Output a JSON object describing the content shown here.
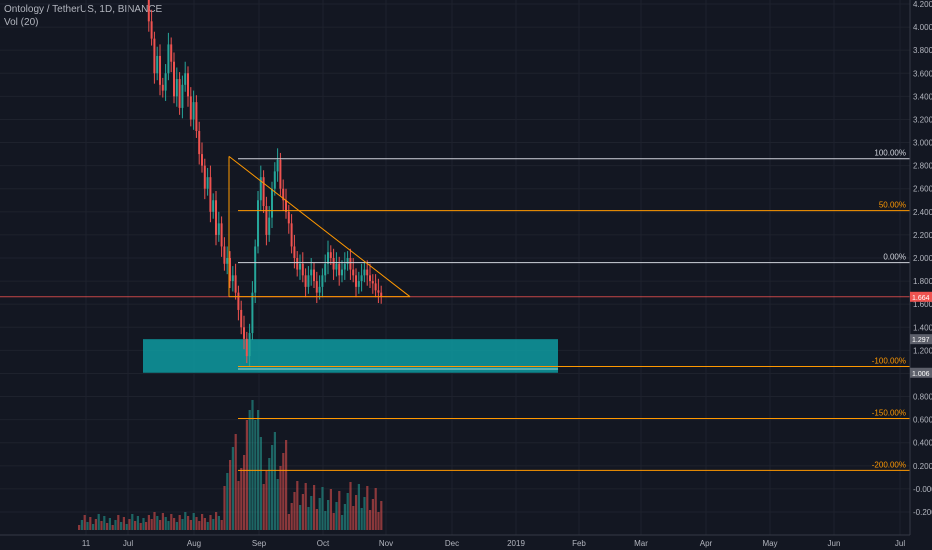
{
  "header": {
    "symbol_line": "Ontology / TetherUS, 1D, BINANCE",
    "volume_label": "Vol (20)"
  },
  "colors": {
    "background": "#131722",
    "up": "#26a69a",
    "down": "#ef5350",
    "grid": "#1e222d",
    "fib_white": "#d1d4dc",
    "fib_orange": "#ff9800",
    "current_price_line": "#ef5350",
    "zone": "#0e9aa0"
  },
  "chart_data": {
    "type": "candlestick",
    "price_axis": {
      "ticks": [
        "4.200",
        "4.000",
        "3.800",
        "3.600",
        "3.400",
        "3.200",
        "3.000",
        "2.800",
        "2.600",
        "2.400",
        "2.200",
        "2.000",
        "1.800",
        "1.600",
        "1.400",
        "1.200",
        "1.000",
        "0.800",
        "0.600",
        "0.400",
        "0.200",
        "-0.000",
        "-0.200"
      ],
      "range": [
        -0.2,
        4.2
      ]
    },
    "time_axis": {
      "labels": [
        "11",
        "Jul",
        "Aug",
        "Sep",
        "Oct",
        "Nov",
        "Dec",
        "2019",
        "Feb",
        "Mar",
        "Apr",
        "May",
        "Jun",
        "Jul"
      ]
    },
    "badges": [
      {
        "text": "1.664",
        "price": 1.664,
        "color": "#ef5350"
      },
      {
        "text": "1.297",
        "price": 1.297,
        "color": "#5d606b"
      },
      {
        "text": "1.006",
        "price": 1.006,
        "color": "#5d606b"
      }
    ],
    "fib_levels": [
      {
        "label": "100.00%",
        "price": 2.86,
        "color": "#d1d4dc"
      },
      {
        "label": "50.00%",
        "price": 2.41,
        "color": "#ff9800"
      },
      {
        "label": "0.00%",
        "price": 1.96,
        "color": "#d1d4dc"
      },
      {
        "label": "-100.00%",
        "price": 1.06,
        "color": "#ff9800"
      },
      {
        "label": "-150.00%",
        "price": 0.61,
        "color": "#ff9800"
      },
      {
        "label": "-200.00%",
        "price": 0.16,
        "color": "#ff9800"
      }
    ],
    "current_price": 1.664,
    "triangle": {
      "apex_top": 2.88,
      "support": 1.665,
      "color": "#ff9800"
    },
    "demand_zone": {
      "top": 1.297,
      "bottom": 1.006,
      "color": "#0e9aa0"
    }
  }
}
